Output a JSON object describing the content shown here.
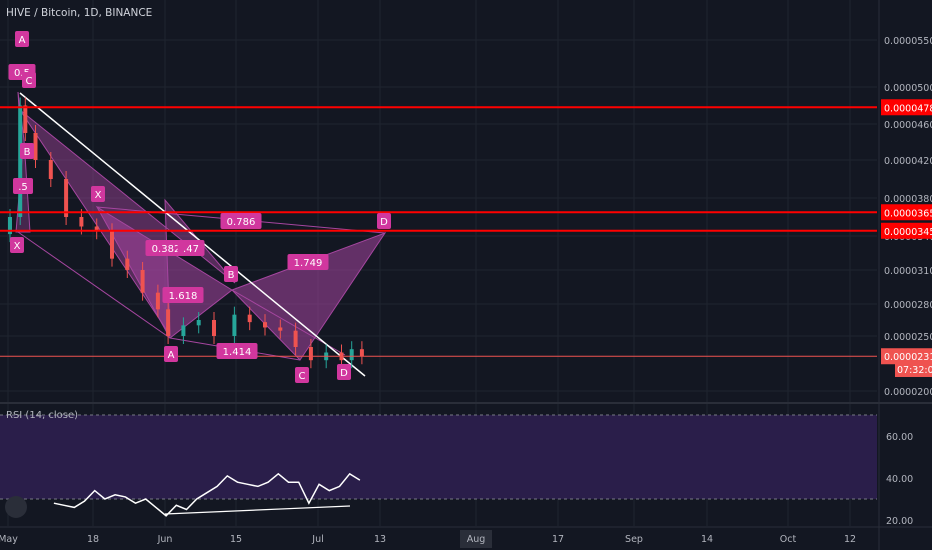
{
  "header": {
    "title": "HIVE / Bitcoin, 1D, BINANCE"
  },
  "rsi_panel": {
    "label": "RSI (14, close)"
  },
  "price_axis": {
    "ticks": [
      "0.00005500",
      "0.00005000",
      "0.00004600",
      "0.00004200",
      "0.00003800",
      "0.00003400",
      "0.00003100",
      "0.00002800",
      "0.00002500",
      "0.00002000"
    ],
    "highlight_labels": [
      "0.00004781",
      "0.00003650",
      "0.00003455",
      "0.00002316"
    ],
    "countdown": "07:32:05"
  },
  "rsi_axis": {
    "ticks": [
      "60.00",
      "40.00",
      "20.00"
    ]
  },
  "time_axis": {
    "labels": [
      "May",
      "18",
      "Jun",
      "15",
      "Jul",
      "13",
      "Aug",
      "17",
      "Sep",
      "14",
      "Oct",
      "12"
    ]
  },
  "colors": {
    "background": "#131722",
    "up": "#26a69a",
    "down": "#ef5350",
    "level": "#ff0000",
    "pattern": "#a646a0",
    "label": "#d1379e",
    "rsi_fill": "#2a1e4a",
    "aug_badge": "#2a2e39"
  },
  "pattern_labels": [
    "A",
    "0.5",
    "C",
    "B",
    ".5",
    "X",
    "X",
    "0.786",
    "D",
    "0.382",
    ".47",
    "B",
    "1.749",
    "1.618",
    "A",
    "1.414",
    "C",
    "D"
  ],
  "chart_data": [
    {
      "type": "candlestick",
      "title": "HIVE / Bitcoin, 1D, BINANCE",
      "ylim": [
        1.95e-05,
        5.55e-05
      ],
      "horizontal_levels": [
        4.781e-05,
        3.65e-05,
        3.455e-05
      ],
      "current_price": 2.316e-05,
      "series": [
        {
          "name": "",
          "values": [
            {
              "date": "2020-05-01",
              "close": 3.6e-05
            },
            {
              "date": "2020-05-03",
              "close": 4.8e-05
            },
            {
              "date": "2020-05-04",
              "close": 4.5e-05
            },
            {
              "date": "2020-05-06",
              "close": 4.2e-05
            },
            {
              "date": "2020-05-09",
              "close": 4e-05
            },
            {
              "date": "2020-05-12",
              "close": 3.6e-05
            },
            {
              "date": "2020-05-15",
              "close": 3.5e-05
            },
            {
              "date": "2020-05-18",
              "close": 3.45e-05
            },
            {
              "date": "2020-05-21",
              "close": 3.2e-05
            },
            {
              "date": "2020-05-24",
              "close": 3.1e-05
            },
            {
              "date": "2020-05-27",
              "close": 2.9e-05
            },
            {
              "date": "2020-05-30",
              "close": 2.75e-05
            },
            {
              "date": "2020-06-01",
              "close": 2.5e-05
            },
            {
              "date": "2020-06-04",
              "close": 2.6e-05
            },
            {
              "date": "2020-06-07",
              "close": 2.65e-05
            },
            {
              "date": "2020-06-10",
              "close": 2.5e-05
            },
            {
              "date": "2020-06-14",
              "close": 2.7e-05
            },
            {
              "date": "2020-06-17",
              "close": 2.63e-05
            },
            {
              "date": "2020-06-20",
              "close": 2.58e-05
            },
            {
              "date": "2020-06-23",
              "close": 2.55e-05
            },
            {
              "date": "2020-06-26",
              "close": 2.4e-05
            },
            {
              "date": "2020-06-29",
              "close": 2.28e-05
            },
            {
              "date": "2020-07-02",
              "close": 2.35e-05
            },
            {
              "date": "2020-07-05",
              "close": 2.28e-05
            },
            {
              "date": "2020-07-07",
              "close": 2.38e-05
            },
            {
              "date": "2020-07-09",
              "close": 2.316e-05
            }
          ]
        }
      ]
    },
    {
      "type": "line",
      "title": "RSI (14, close)",
      "ylim": [
        20,
        70
      ],
      "bands": [
        30,
        70
      ],
      "series": [
        {
          "name": "",
          "x": [
            "2020-05-10",
            "2020-05-12",
            "2020-05-14",
            "2020-05-16",
            "2020-05-18",
            "2020-05-20",
            "2020-05-22",
            "2020-05-24",
            "2020-05-26",
            "2020-05-28",
            "2020-05-30",
            "2020-06-01",
            "2020-06-03",
            "2020-06-05",
            "2020-06-07",
            "2020-06-09",
            "2020-06-11",
            "2020-06-13",
            "2020-06-15",
            "2020-06-17",
            "2020-06-19",
            "2020-06-21",
            "2020-06-23",
            "2020-06-25",
            "2020-06-27",
            "2020-06-29",
            "2020-07-01",
            "2020-07-03",
            "2020-07-05",
            "2020-07-07",
            "2020-07-09"
          ],
          "values": [
            28,
            27,
            26,
            29,
            34,
            30,
            32,
            31,
            28,
            30,
            26,
            22,
            27,
            25,
            30,
            33,
            36,
            41,
            38,
            37,
            36,
            38,
            42,
            38,
            38,
            28,
            37,
            34,
            36,
            42,
            39
          ]
        }
      ]
    }
  ]
}
